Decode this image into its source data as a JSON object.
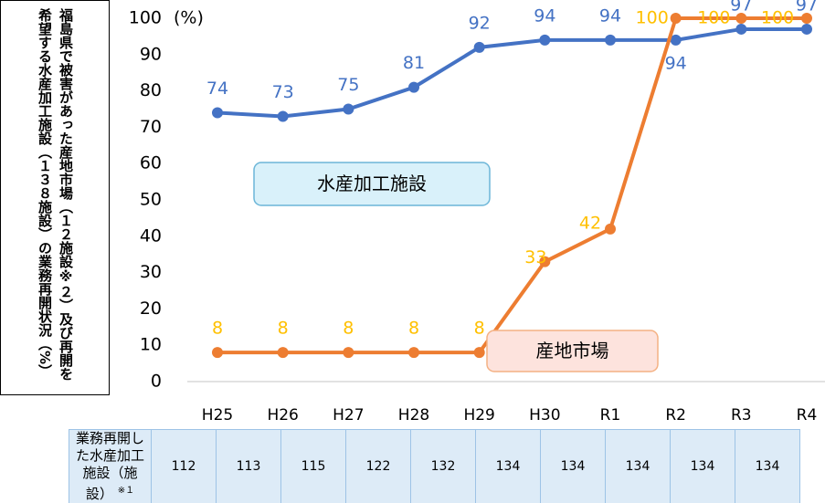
{
  "chart_data": {
    "type": "line",
    "y_label": "福島県で被害があった産地市場（１２施設※２）及び再開を希望する水産加工施設（１３８施設）の業務再開状況（%）",
    "unit": "(%)",
    "categories": [
      "H25",
      "H26",
      "H27",
      "H28",
      "H29",
      "H30",
      "R1",
      "R2",
      "R3",
      "R4"
    ],
    "series": [
      {
        "name": "水産加工施設",
        "color": "#4472c4",
        "label_color": "#4472c4",
        "values": [
          74,
          73,
          75,
          81,
          92,
          94,
          94,
          94,
          97,
          97
        ]
      },
      {
        "name": "産地市場",
        "color": "#ed7d31",
        "label_color": "#ffc000",
        "values": [
          8,
          8,
          8,
          8,
          8,
          33,
          42,
          100,
          100,
          100
        ]
      }
    ],
    "ylim": [
      0,
      100
    ],
    "yticks": [
      0,
      10,
      20,
      30,
      40,
      50,
      60,
      70,
      80,
      90,
      100
    ]
  },
  "table": {
    "header": "業務再開した水産加工施設（施設）",
    "note": "※１",
    "values": [
      112,
      113,
      115,
      122,
      132,
      134,
      134,
      134,
      134,
      134
    ]
  }
}
